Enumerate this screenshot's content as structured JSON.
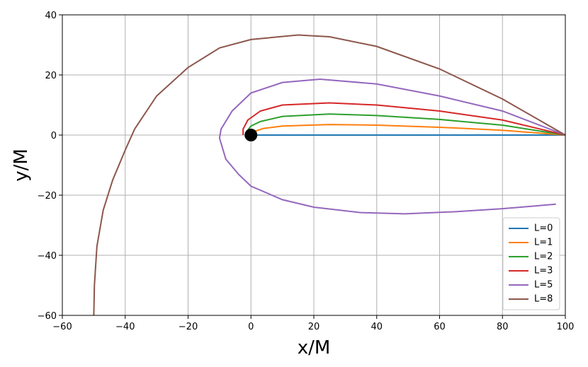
{
  "chart_data": {
    "type": "line",
    "x_label": "x/M",
    "y_label": "y/M",
    "xlim": [
      -60,
      100
    ],
    "ylim": [
      -60,
      40
    ],
    "xticks": [
      {
        "value": -60,
        "label": "−60"
      },
      {
        "value": -40,
        "label": "−40"
      },
      {
        "value": -20,
        "label": "−20"
      },
      0,
      20,
      40,
      60,
      80,
      100
    ],
    "yticks": [
      {
        "value": -60,
        "label": "−60"
      },
      {
        "value": -40,
        "label": "−40"
      },
      {
        "value": -20,
        "label": "−20"
      },
      0,
      20,
      40
    ],
    "grid": true,
    "legend": "lower right",
    "series": [
      {
        "name": "L=0",
        "color": "#1f77b4",
        "x": [
          100,
          75,
          50,
          25,
          0
        ],
        "values": [
          0,
          0,
          0,
          0,
          0
        ]
      },
      {
        "name": "L=1",
        "color": "#ff7f0e",
        "x": [
          100,
          80,
          60,
          40,
          25,
          10,
          4,
          1,
          0
        ],
        "values": [
          0,
          1.6,
          2.6,
          3.3,
          3.5,
          3.0,
          2.2,
          1.2,
          0.3
        ]
      },
      {
        "name": "L=2",
        "color": "#2ca02c",
        "x": [
          100,
          80,
          60,
          40,
          25,
          10,
          3,
          0,
          -1.5,
          -1
        ],
        "values": [
          0,
          3.3,
          5.2,
          6.5,
          7,
          6.2,
          4.5,
          3,
          1,
          0
        ]
      },
      {
        "name": "L=3",
        "color": "#d62728",
        "x": [
          100,
          80,
          60,
          40,
          25,
          10,
          3,
          -1,
          -2.5,
          -2.5
        ],
        "values": [
          0,
          5,
          8,
          10,
          10.7,
          10,
          8,
          5,
          2,
          0
        ]
      },
      {
        "name": "L=5",
        "color": "#9467bd",
        "x": [
          100,
          80,
          60,
          40,
          22,
          10,
          0,
          -6,
          -9.5,
          -10,
          -8,
          -4,
          0,
          10,
          20,
          35,
          49,
          65,
          80,
          97
        ],
        "values": [
          0,
          8,
          13,
          17,
          18.6,
          17.5,
          14,
          8,
          2,
          -1,
          -8,
          -13,
          -17,
          -21.5,
          -24,
          -25.8,
          -26.2,
          -25.5,
          -24.5,
          -23
        ]
      },
      {
        "name": "L=8",
        "color": "#8c564b",
        "x": [
          100,
          80,
          60,
          40,
          25,
          15,
          0,
          -10,
          -20,
          -30,
          -37,
          -40,
          -44,
          -47,
          -49,
          -49.8,
          -50
        ],
        "values": [
          0,
          12,
          22,
          29.5,
          32.7,
          33.3,
          31.8,
          29,
          22.5,
          13,
          2,
          -5,
          -15,
          -25,
          -37,
          -50,
          -60
        ]
      }
    ],
    "marker": {
      "x": 0,
      "y": 0,
      "color": "#000000"
    }
  }
}
